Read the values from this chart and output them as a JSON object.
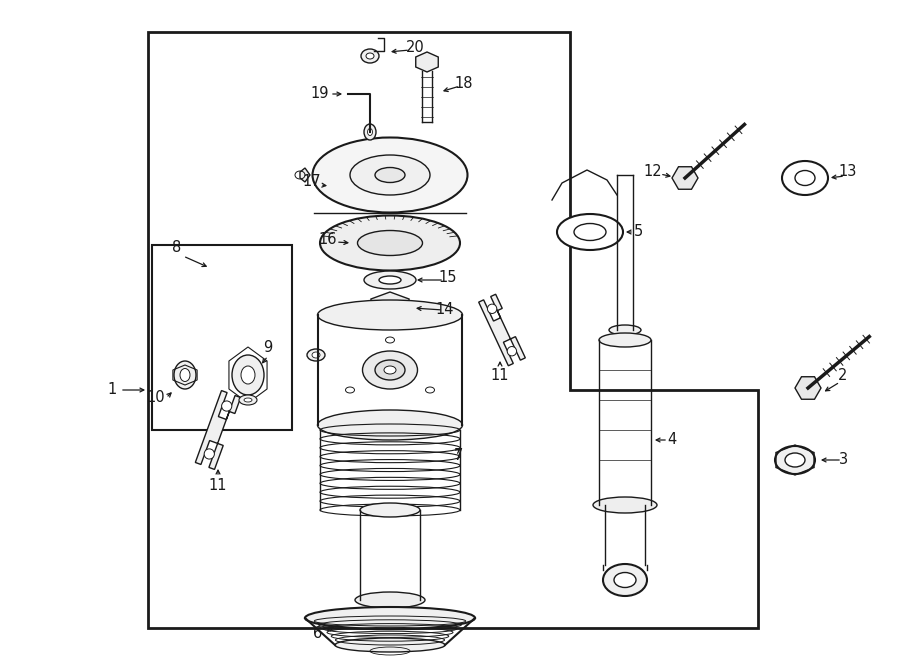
{
  "bg_color": "#ffffff",
  "line_color": "#1a1a1a",
  "fig_width": 9.0,
  "fig_height": 6.61,
  "dpi": 100,
  "lw": 1.0,
  "lw2": 1.5,
  "lw3": 2.0,
  "label_fontsize": 10.5
}
